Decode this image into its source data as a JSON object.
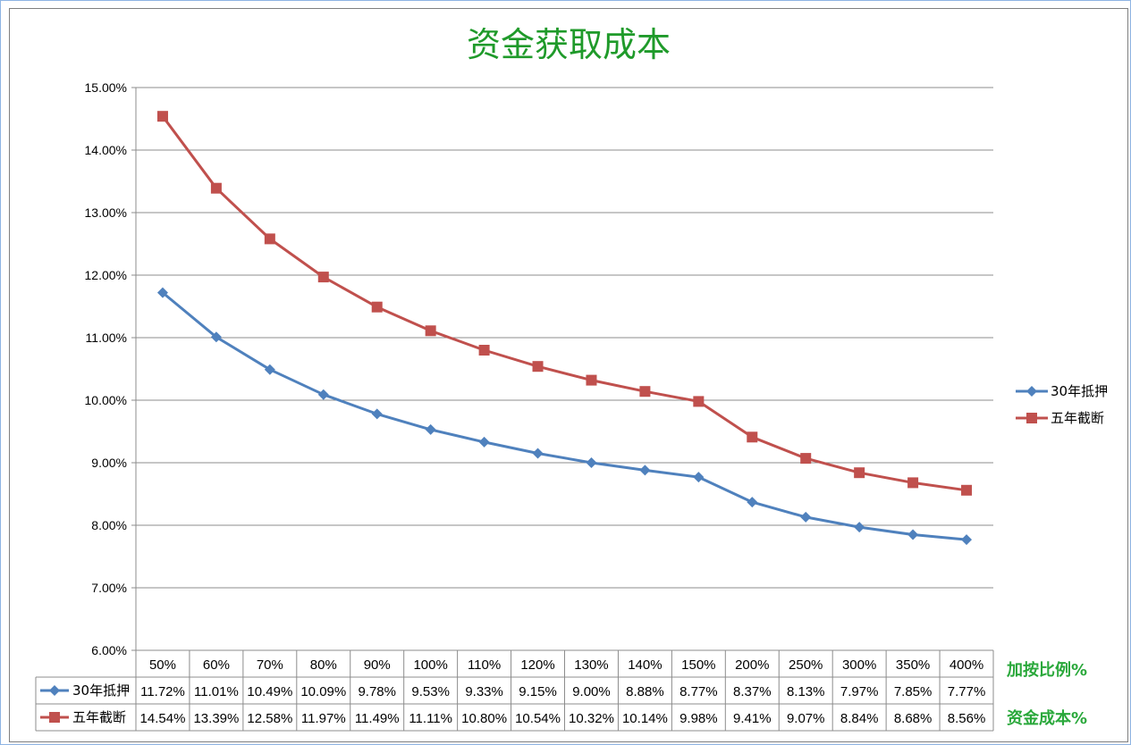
{
  "chart_data": {
    "type": "line",
    "title": "资金获取成本",
    "categories": [
      "50%",
      "60%",
      "70%",
      "80%",
      "90%",
      "100%",
      "110%",
      "120%",
      "130%",
      "140%",
      "150%",
      "200%",
      "250%",
      "300%",
      "350%",
      "400%"
    ],
    "series": [
      {
        "name": "30年抵押",
        "color": "#4f81bd",
        "marker": "diamond",
        "values": [
          11.72,
          11.01,
          10.49,
          10.09,
          9.78,
          9.53,
          9.33,
          9.15,
          9.0,
          8.88,
          8.77,
          8.37,
          8.13,
          7.97,
          7.85,
          7.77
        ],
        "labels": [
          "11.72%",
          "11.01%",
          "10.49%",
          "10.09%",
          "9.78%",
          "9.53%",
          "9.33%",
          "9.15%",
          "9.00%",
          "8.88%",
          "8.77%",
          "8.37%",
          "8.13%",
          "7.97%",
          "7.85%",
          "7.77%"
        ]
      },
      {
        "name": "五年截断",
        "color": "#c0504d",
        "marker": "square",
        "values": [
          14.54,
          13.39,
          12.58,
          11.97,
          11.49,
          11.11,
          10.8,
          10.54,
          10.32,
          10.14,
          9.98,
          9.41,
          9.07,
          8.84,
          8.68,
          8.56
        ],
        "labels": [
          "14.54%",
          "13.39%",
          "12.58%",
          "11.97%",
          "11.49%",
          "11.11%",
          "10.80%",
          "10.54%",
          "10.32%",
          "10.14%",
          "9.98%",
          "9.41%",
          "9.07%",
          "8.84%",
          "8.68%",
          "8.56%"
        ]
      }
    ],
    "ylim": [
      6,
      15
    ],
    "yticks": [
      "6.00%",
      "7.00%",
      "8.00%",
      "9.00%",
      "10.00%",
      "11.00%",
      "12.00%",
      "13.00%",
      "14.00%",
      "15.00%"
    ],
    "grid": true,
    "legend_position": "right",
    "data_table": true
  },
  "side_labels": {
    "category_row": "加按比例%",
    "value_rows": "资金成本%"
  }
}
